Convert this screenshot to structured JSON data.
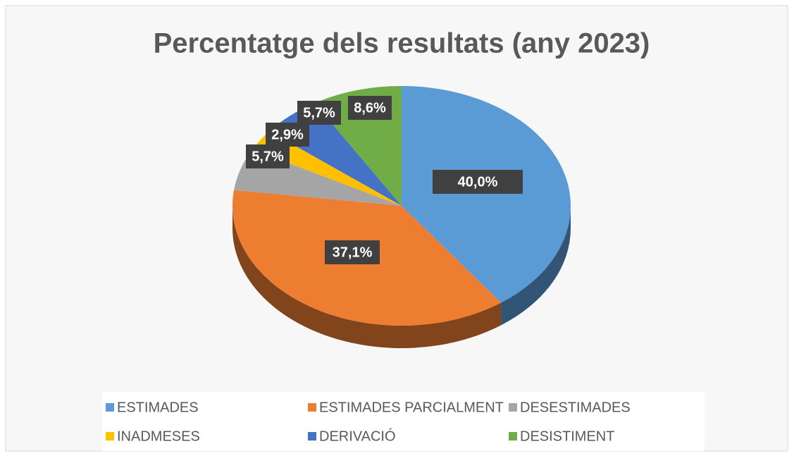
{
  "chart_data": {
    "type": "pie",
    "title": "Percentatge dels resultats (any 2023)",
    "categories": [
      "ESTIMADES",
      "ESTIMADES PARCIALMENT",
      "DESESTIMADES",
      "INADMESES",
      "DERIVACIÓ",
      "DESISTIMENT"
    ],
    "values": [
      40.0,
      37.1,
      5.7,
      2.9,
      5.7,
      8.6
    ],
    "value_labels": [
      "40,0%",
      "37,1%",
      "5,7%",
      "2,9%",
      "5,7%",
      "8,6%"
    ],
    "colors": [
      "#5b9bd5",
      "#ed7d31",
      "#a5a5a5",
      "#ffc000",
      "#4472c4",
      "#70ad47"
    ],
    "legend": "bottom"
  }
}
